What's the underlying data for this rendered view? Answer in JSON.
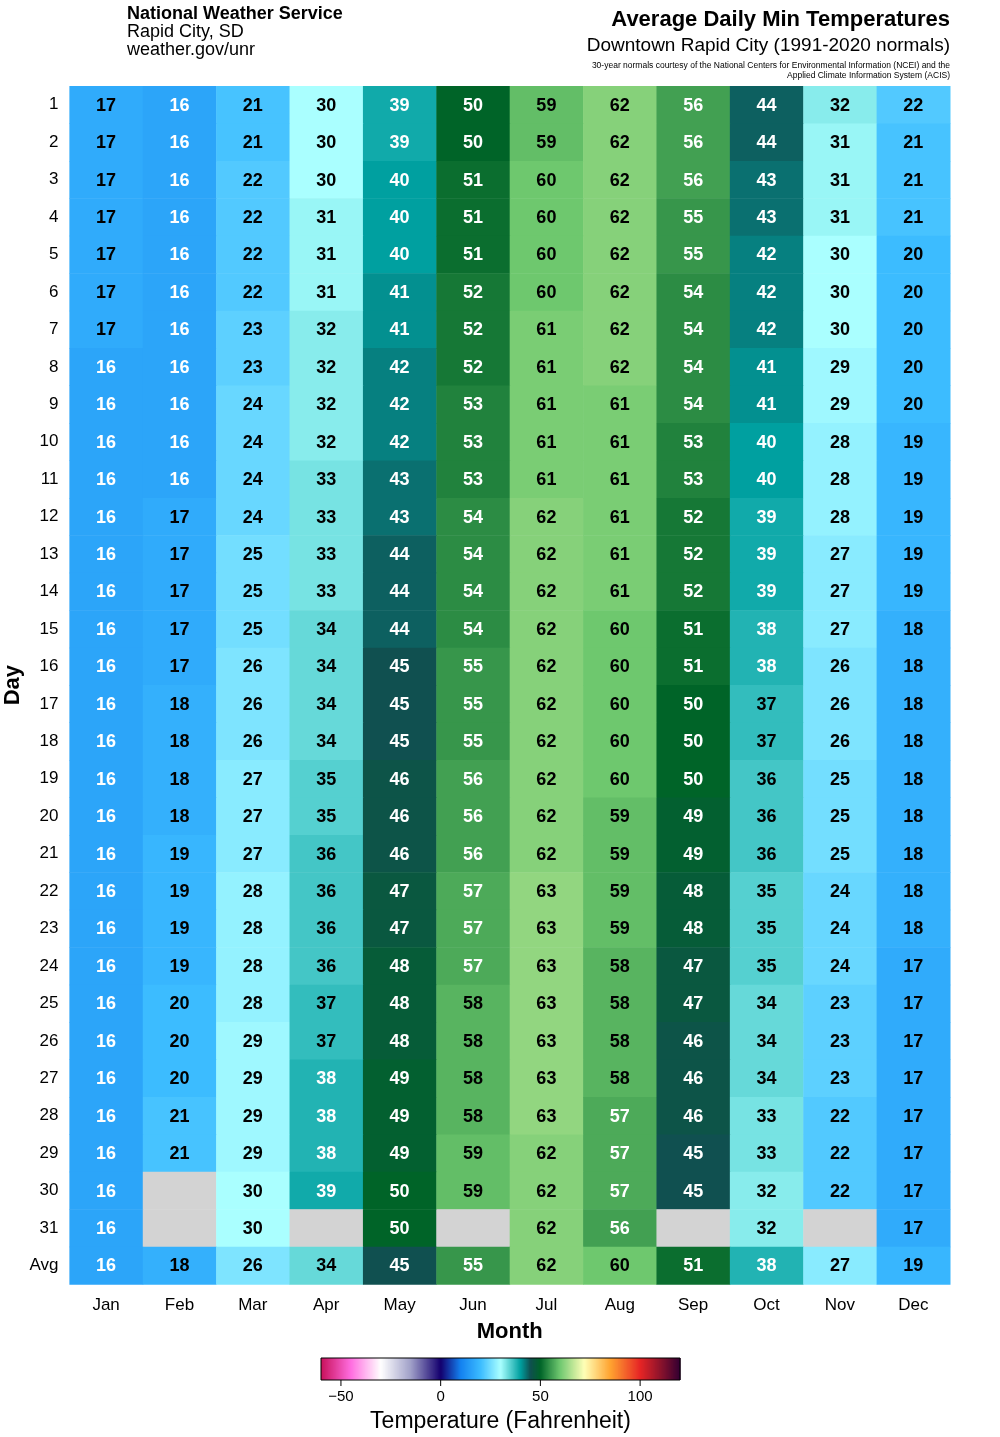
{
  "chart_data": {
    "type": "heatmap",
    "title": "Average Daily Min Temperatures",
    "subtitle": "Downtown Rapid City (1991-2020 normals)",
    "annotations": [
      "National Weather Service",
      "Rapid City, SD",
      "weather.gov/unr",
      "30-year normals courtesy of the National Centers for Environmental Information (NCEI) and the Applied Climate Information System (ACIS)"
    ],
    "xlabel": "Month",
    "ylabel": "Day",
    "clabel": "Temperature (Fahrenheit)",
    "clim": [
      -60,
      120
    ],
    "cticks": [
      -50,
      0,
      50,
      100
    ],
    "data_labels": true,
    "categories": [
      "Jan",
      "Feb",
      "Mar",
      "Apr",
      "May",
      "Jun",
      "Jul",
      "Aug",
      "Sep",
      "Oct",
      "Nov",
      "Dec"
    ],
    "y_categories": [
      "1",
      "2",
      "3",
      "4",
      "5",
      "6",
      "7",
      "8",
      "9",
      "10",
      "11",
      "12",
      "13",
      "14",
      "15",
      "16",
      "17",
      "18",
      "19",
      "20",
      "21",
      "22",
      "23",
      "24",
      "25",
      "26",
      "27",
      "28",
      "29",
      "30",
      "31",
      "Avg"
    ],
    "cells": [
      [
        17,
        16,
        21,
        30,
        39,
        50,
        59,
        62,
        56,
        44,
        32,
        22
      ],
      [
        17,
        16,
        21,
        30,
        39,
        50,
        59,
        62,
        56,
        44,
        31,
        21
      ],
      [
        17,
        16,
        22,
        30,
        40,
        51,
        60,
        62,
        56,
        43,
        31,
        21
      ],
      [
        17,
        16,
        22,
        31,
        40,
        51,
        60,
        62,
        55,
        43,
        31,
        21
      ],
      [
        17,
        16,
        22,
        31,
        40,
        51,
        60,
        62,
        55,
        42,
        30,
        20
      ],
      [
        17,
        16,
        22,
        31,
        41,
        52,
        60,
        62,
        54,
        42,
        30,
        20
      ],
      [
        17,
        16,
        23,
        32,
        41,
        52,
        61,
        62,
        54,
        42,
        30,
        20
      ],
      [
        16,
        16,
        23,
        32,
        42,
        52,
        61,
        62,
        54,
        41,
        29,
        20
      ],
      [
        16,
        16,
        24,
        32,
        42,
        53,
        61,
        61,
        54,
        41,
        29,
        20
      ],
      [
        16,
        16,
        24,
        32,
        42,
        53,
        61,
        61,
        53,
        40,
        28,
        19
      ],
      [
        16,
        16,
        24,
        33,
        43,
        53,
        61,
        61,
        53,
        40,
        28,
        19
      ],
      [
        16,
        17,
        24,
        33,
        43,
        54,
        62,
        61,
        52,
        39,
        28,
        19
      ],
      [
        16,
        17,
        25,
        33,
        44,
        54,
        62,
        61,
        52,
        39,
        27,
        19
      ],
      [
        16,
        17,
        25,
        33,
        44,
        54,
        62,
        61,
        52,
        39,
        27,
        19
      ],
      [
        16,
        17,
        25,
        34,
        44,
        54,
        62,
        60,
        51,
        38,
        27,
        18
      ],
      [
        16,
        17,
        26,
        34,
        45,
        55,
        62,
        60,
        51,
        38,
        26,
        18
      ],
      [
        16,
        18,
        26,
        34,
        45,
        55,
        62,
        60,
        50,
        37,
        26,
        18
      ],
      [
        16,
        18,
        26,
        34,
        45,
        55,
        62,
        60,
        50,
        37,
        26,
        18
      ],
      [
        16,
        18,
        27,
        35,
        46,
        56,
        62,
        60,
        50,
        36,
        25,
        18
      ],
      [
        16,
        18,
        27,
        35,
        46,
        56,
        62,
        59,
        49,
        36,
        25,
        18
      ],
      [
        16,
        19,
        27,
        36,
        46,
        56,
        62,
        59,
        49,
        36,
        25,
        18
      ],
      [
        16,
        19,
        28,
        36,
        47,
        57,
        63,
        59,
        48,
        35,
        24,
        18
      ],
      [
        16,
        19,
        28,
        36,
        47,
        57,
        63,
        59,
        48,
        35,
        24,
        18
      ],
      [
        16,
        19,
        28,
        36,
        48,
        57,
        63,
        58,
        47,
        35,
        24,
        17
      ],
      [
        16,
        20,
        28,
        37,
        48,
        58,
        63,
        58,
        47,
        34,
        23,
        17
      ],
      [
        16,
        20,
        29,
        37,
        48,
        58,
        63,
        58,
        46,
        34,
        23,
        17
      ],
      [
        16,
        20,
        29,
        38,
        49,
        58,
        63,
        58,
        46,
        34,
        23,
        17
      ],
      [
        16,
        21,
        29,
        38,
        49,
        58,
        63,
        57,
        46,
        33,
        22,
        17
      ],
      [
        16,
        21,
        29,
        38,
        49,
        59,
        62,
        57,
        45,
        33,
        22,
        17
      ],
      [
        16,
        null,
        30,
        39,
        50,
        59,
        62,
        57,
        45,
        32,
        22,
        17
      ],
      [
        16,
        null,
        30,
        null,
        50,
        null,
        62,
        56,
        null,
        32,
        null,
        17
      ],
      [
        16,
        18,
        26,
        34,
        45,
        55,
        62,
        60,
        51,
        38,
        27,
        19
      ]
    ]
  }
}
